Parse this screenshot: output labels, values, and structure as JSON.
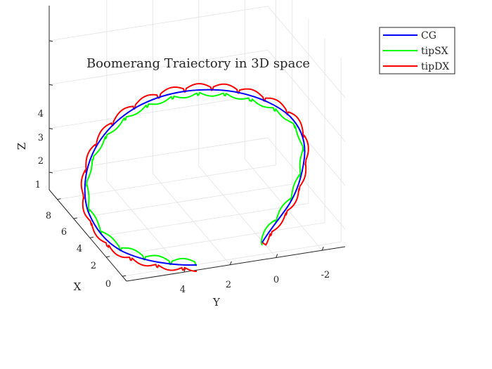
{
  "chart_data": {
    "type": "line3d",
    "title": "Boomerang Traiectory in 3D space",
    "xlabel": "X",
    "ylabel": "Y",
    "zlabel": "Z",
    "xlim": [
      -0.5,
      9
    ],
    "ylim": [
      -3,
      6.5
    ],
    "zlim": [
      0.6,
      4.8
    ],
    "xticks": [
      "0",
      "2",
      "4",
      "6",
      "8"
    ],
    "yticks": [
      "-2",
      "0",
      "2",
      "4"
    ],
    "zticks": [
      "1",
      "2",
      "3",
      "4"
    ],
    "grid": true,
    "legend_position": "top-right",
    "series": [
      {
        "name": "CG",
        "color": "#0000ff"
      },
      {
        "name": "tipSX",
        "color": "#00ff00"
      },
      {
        "name": "tipDX",
        "color": "#ff0000"
      }
    ]
  }
}
